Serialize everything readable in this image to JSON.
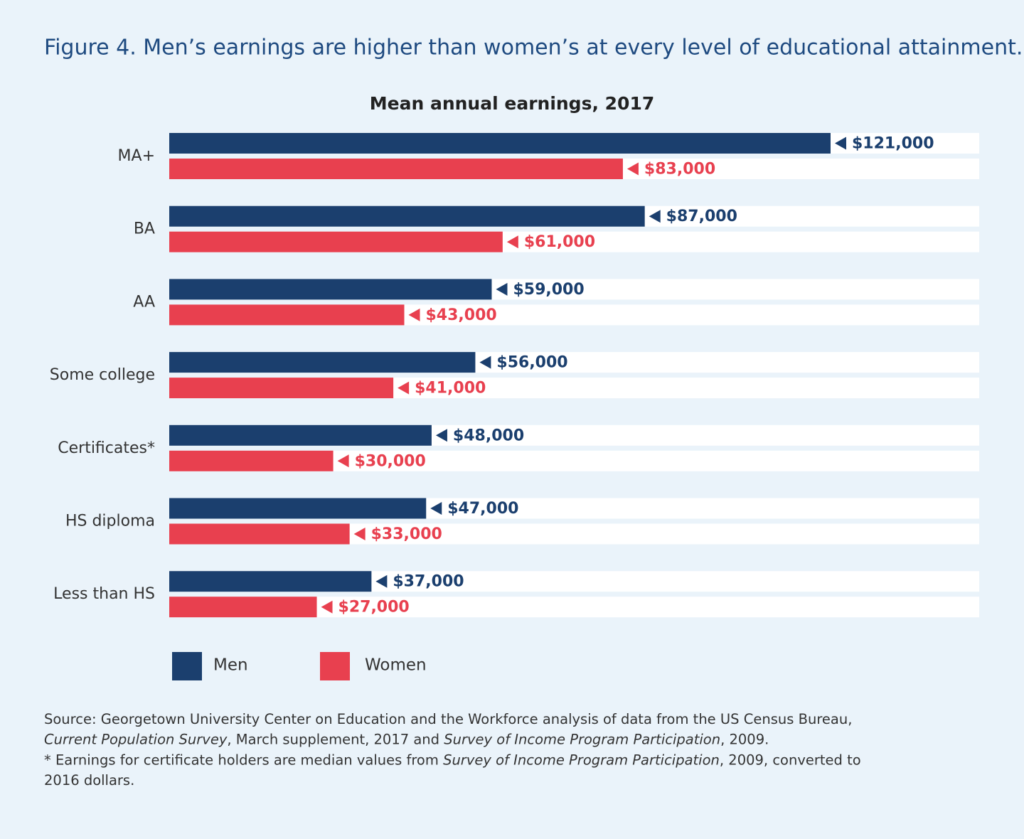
{
  "chart_data": {
    "type": "hbar",
    "title": "Figure 4. Men’s earnings are higher than women’s at every level of educational attainment.",
    "subtitle": "Mean annual earnings, 2017",
    "categories": [
      "MA+",
      "BA",
      "AA",
      "Some college",
      "Certificates*",
      "HS diploma",
      "Less than HS"
    ],
    "series": [
      {
        "name": "Men",
        "color": "#1b3f6e",
        "values": [
          121000,
          87000,
          59000,
          56000,
          48000,
          47000,
          37000
        ],
        "value_labels": [
          "$121,000",
          "$87,000",
          "$59,000",
          "$56,000",
          "$48,000",
          "$47,000",
          "$37,000"
        ]
      },
      {
        "name": "Women",
        "color": "#e8404f",
        "values": [
          83000,
          61000,
          43000,
          41000,
          30000,
          33000,
          27000
        ],
        "value_labels": [
          "$83,000",
          "$61,000",
          "$43,000",
          "$41,000",
          "$30,000",
          "$33,000",
          "$27,000"
        ]
      }
    ],
    "notes": [
      [
        {
          "text": "Source: Georgetown University Center on Education and the Workforce analysis of data from the US Census Bureau,",
          "italic": false
        }
      ],
      [
        {
          "text": "Current Population Survey",
          "italic": true
        },
        {
          "text": ", March supplement, 2017 and ",
          "italic": false
        },
        {
          "text": "Survey of Income Program Participation",
          "italic": true
        },
        {
          "text": ", 2009.",
          "italic": false
        }
      ],
      [
        {
          "text": "* Earnings for certificate holders are median values from ",
          "italic": false
        },
        {
          "text": "Survey of Income Program Participation",
          "italic": true
        },
        {
          "text": ", 2009, converted to",
          "italic": false
        }
      ],
      [
        {
          "text": "2016 dollars.",
          "italic": false
        }
      ]
    ]
  }
}
